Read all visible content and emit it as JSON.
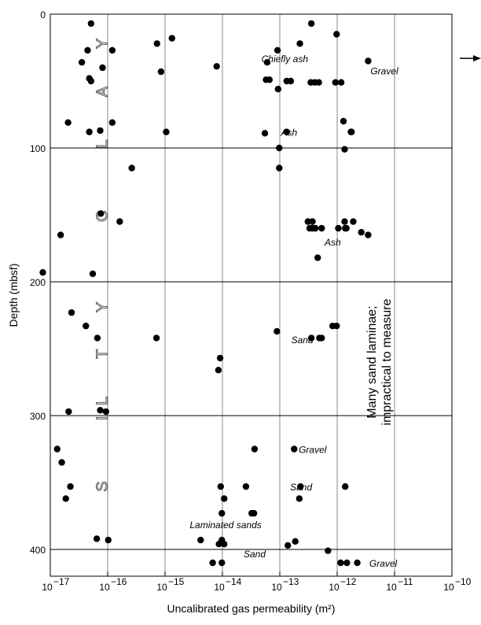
{
  "chart_data": {
    "type": "scatter",
    "xlabel": "Uncalibrated gas permeability (m²)",
    "ylabel": "Depth (mbsf)",
    "xscale": "log",
    "xlim": [
      -17,
      -10
    ],
    "ylim": [
      0,
      420
    ],
    "x_ticks": [
      {
        "exp": -17,
        "label": "10",
        "sup": "−17"
      },
      {
        "exp": -16,
        "label": "10",
        "sup": "−16"
      },
      {
        "exp": -15,
        "label": "10",
        "sup": "−15"
      },
      {
        "exp": -14,
        "label": "10",
        "sup": "−14"
      },
      {
        "exp": -13,
        "label": "10",
        "sup": "−13"
      },
      {
        "exp": -12,
        "label": "10",
        "sup": "−12"
      },
      {
        "exp": -11,
        "label": "10",
        "sup": "−11"
      },
      {
        "exp": -10,
        "label": "10",
        "sup": "−10"
      }
    ],
    "y_ticks": [
      0,
      100,
      200,
      300,
      400
    ],
    "grid": true,
    "points": [
      [
        -16.29,
        7
      ],
      [
        -16.45,
        36
      ],
      [
        -16.32,
        48
      ],
      [
        -16.29,
        50
      ],
      [
        -16.35,
        27
      ],
      [
        -16.09,
        40
      ],
      [
        -15.92,
        27
      ],
      [
        -15.14,
        22
      ],
      [
        -14.88,
        18
      ],
      [
        -14.98,
        88
      ],
      [
        -15.07,
        43
      ],
      [
        -16.69,
        81
      ],
      [
        -16.32,
        88
      ],
      [
        -16.13,
        87
      ],
      [
        -15.92,
        81
      ],
      [
        -14.1,
        39
      ],
      [
        -13.22,
        36
      ],
      [
        -13.04,
        27
      ],
      [
        -13.18,
        49
      ],
      [
        -13.24,
        49
      ],
      [
        -12.88,
        50
      ],
      [
        -12.81,
        50
      ],
      [
        -13.03,
        56
      ],
      [
        -12.65,
        22
      ],
      [
        -12.45,
        7
      ],
      [
        -12.01,
        15
      ],
      [
        -12.32,
        51
      ],
      [
        -12.39,
        51
      ],
      [
        -12.46,
        51
      ],
      [
        -11.93,
        51
      ],
      [
        -12.03,
        51
      ],
      [
        -13.26,
        89
      ],
      [
        -11.46,
        35
      ],
      [
        -12.88,
        88
      ],
      [
        -11.75,
        88
      ],
      [
        -11.89,
        80
      ],
      [
        -11.76,
        88
      ],
      [
        -11.87,
        101
      ],
      [
        -13.01,
        100
      ],
      [
        -15.58,
        115
      ],
      [
        -13.01,
        115
      ],
      [
        -16.12,
        149
      ],
      [
        -15.79,
        155
      ],
      [
        -16.82,
        165
      ],
      [
        -17.13,
        193
      ],
      [
        -16.26,
        194
      ],
      [
        -12.51,
        155
      ],
      [
        -12.43,
        155
      ],
      [
        -12.48,
        160
      ],
      [
        -12.43,
        160
      ],
      [
        -12.27,
        160
      ],
      [
        -12.38,
        160
      ],
      [
        -11.87,
        155
      ],
      [
        -11.72,
        155
      ],
      [
        -11.84,
        160
      ],
      [
        -11.98,
        160
      ],
      [
        -11.86,
        160
      ],
      [
        -11.58,
        163
      ],
      [
        -11.46,
        165
      ],
      [
        -12.34,
        182
      ],
      [
        -16.63,
        223
      ],
      [
        -16.38,
        233
      ],
      [
        -16.18,
        242
      ],
      [
        -15.15,
        242
      ],
      [
        -13.05,
        237
      ],
      [
        -12.45,
        242
      ],
      [
        -12.31,
        242
      ],
      [
        -12.27,
        242
      ],
      [
        -12.08,
        233
      ],
      [
        -12.01,
        233
      ],
      [
        -14.04,
        257
      ],
      [
        -14.07,
        266
      ],
      [
        -16.68,
        297
      ],
      [
        -16.13,
        296
      ],
      [
        -16.03,
        297
      ],
      [
        -16.88,
        325
      ],
      [
        -16.8,
        335
      ],
      [
        -16.65,
        353
      ],
      [
        -16.73,
        362
      ],
      [
        -13.44,
        325
      ],
      [
        -12.75,
        325
      ],
      [
        -13.59,
        353
      ],
      [
        -12.64,
        353
      ],
      [
        -12.66,
        362
      ],
      [
        -14.03,
        353
      ],
      [
        -13.97,
        362
      ],
      [
        -14.01,
        373
      ],
      [
        -13.49,
        373
      ],
      [
        -13.45,
        373
      ],
      [
        -11.86,
        353
      ],
      [
        -14.38,
        393
      ],
      [
        -14.06,
        396
      ],
      [
        -13.97,
        396
      ],
      [
        -14.01,
        393
      ],
      [
        -12.73,
        394
      ],
      [
        -12.86,
        397
      ],
      [
        -16.19,
        392
      ],
      [
        -15.99,
        393
      ],
      [
        -14.17,
        410
      ],
      [
        -14.01,
        410
      ],
      [
        -12.16,
        401
      ],
      [
        -11.94,
        410
      ],
      [
        -11.83,
        410
      ],
      [
        -11.65,
        410
      ]
    ],
    "annotations": [
      {
        "text": "Chiefly ash",
        "x": -13.32,
        "y": 36
      },
      {
        "text": "Gravel",
        "x": -11.42,
        "y": 45
      },
      {
        "text": "Ash",
        "x": -12.98,
        "y": 91
      },
      {
        "text": "Ash",
        "x": -12.22,
        "y": 173
      },
      {
        "text": "Sand",
        "x": -12.8,
        "y": 246
      },
      {
        "text": "Gravel",
        "x": -12.67,
        "y": 328
      },
      {
        "text": "Sand",
        "x": -12.82,
        "y": 356
      },
      {
        "text": "Laminated sands",
        "x": -14.57,
        "y": 384
      },
      {
        "text": "Sand",
        "x": -13.63,
        "y": 406
      },
      {
        "text": "Gravel",
        "x": -11.44,
        "y": 413
      }
    ],
    "side_note": [
      "Many sand laminae;",
      "impractical to measure"
    ],
    "lithology_letters": [
      "S",
      "I",
      "L",
      "T",
      "Y",
      "C",
      "L",
      "A",
      "Y"
    ],
    "arrow": {
      "y": 33
    }
  }
}
